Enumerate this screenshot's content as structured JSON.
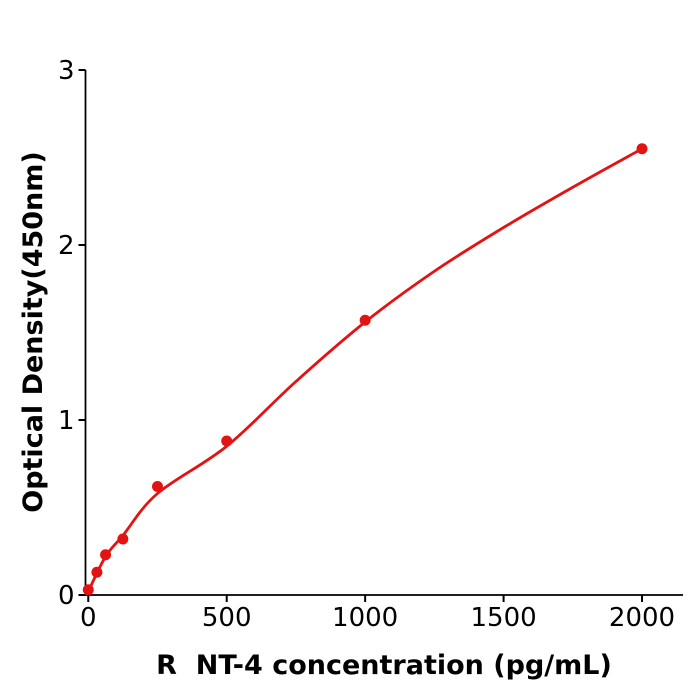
{
  "figure": {
    "background": "#ffffff",
    "axis_color": "#000000"
  },
  "chart_data": {
    "type": "scatter",
    "title": "",
    "xlabel": "R  NT-4 concentration (pg/mL)",
    "ylabel": "Optical Density(450nm)",
    "series": [
      {
        "name": "standard-curve-points",
        "x": [
          0,
          31.25,
          62.5,
          125,
          250,
          500,
          1000,
          2000
        ],
        "y": [
          0.03,
          0.13,
          0.23,
          0.32,
          0.62,
          0.88,
          1.57,
          2.55
        ]
      }
    ],
    "fit_curve": [
      [
        0,
        0.02
      ],
      [
        62.5,
        0.22
      ],
      [
        125,
        0.34
      ],
      [
        250,
        0.58
      ],
      [
        500,
        0.85
      ],
      [
        750,
        1.22
      ],
      [
        1000,
        1.56
      ],
      [
        1250,
        1.85
      ],
      [
        1500,
        2.1
      ],
      [
        1750,
        2.33
      ],
      [
        2000,
        2.55
      ]
    ],
    "xticks": [
      0,
      500,
      1000,
      1500,
      2000
    ],
    "yticks": [
      0,
      1,
      2,
      3
    ],
    "xtick_labels": [
      "0",
      "500",
      "1000",
      "1500",
      "2000"
    ],
    "ytick_labels": [
      "0",
      "1",
      "2",
      "3"
    ],
    "xlim": [
      -10,
      2148
    ],
    "ylim": [
      0,
      3
    ],
    "grid": false,
    "legend": null,
    "curve_color": "#e41313",
    "point_color": "#e41313"
  }
}
